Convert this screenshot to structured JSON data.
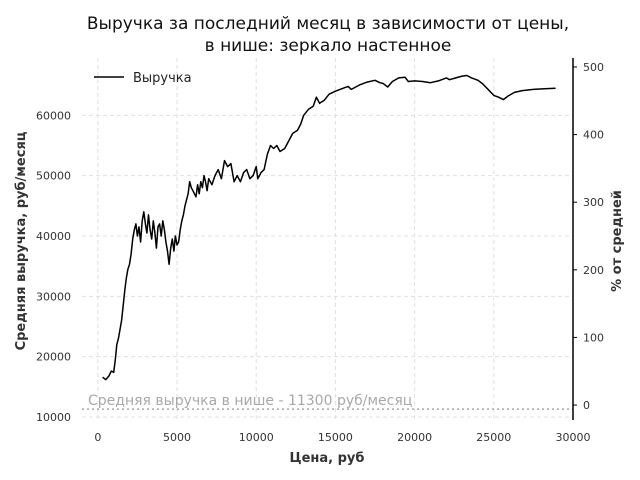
{
  "chart_data": {
    "type": "line",
    "title": "Выручка за последний месяц в зависимости от цены,",
    "subtitle": "в нише: зеркало настенное",
    "xlabel": "Цена, руб",
    "ylabel": "Средняя выручка, руб/месяц",
    "y2label": "% от средней",
    "xlim": [
      -1000,
      30000
    ],
    "ylim": [
      9500,
      69500
    ],
    "y2lim": [
      -22.12,
      513.27
    ],
    "x_ticks": [
      0,
      5000,
      10000,
      15000,
      20000,
      25000,
      30000
    ],
    "y_ticks": [
      10000,
      20000,
      30000,
      40000,
      50000,
      60000
    ],
    "y2_ticks": [
      0,
      100,
      200,
      300,
      400,
      500
    ],
    "grid": true,
    "legend": {
      "position": "top-left",
      "entries": [
        "Выручка"
      ]
    },
    "series": [
      {
        "name": "Выручка",
        "color": "#000000",
        "points": [
          [
            300,
            16600
          ],
          [
            500,
            16200
          ],
          [
            700,
            16800
          ],
          [
            850,
            17600
          ],
          [
            1000,
            17400
          ],
          [
            1100,
            19500
          ],
          [
            1200,
            22000
          ],
          [
            1300,
            23000
          ],
          [
            1400,
            24500
          ],
          [
            1500,
            26000
          ],
          [
            1600,
            28500
          ],
          [
            1700,
            31000
          ],
          [
            1800,
            33000
          ],
          [
            1900,
            34500
          ],
          [
            2000,
            35300
          ],
          [
            2100,
            37000
          ],
          [
            2200,
            39500
          ],
          [
            2300,
            41000
          ],
          [
            2400,
            42000
          ],
          [
            2500,
            40000
          ],
          [
            2600,
            41500
          ],
          [
            2700,
            39000
          ],
          [
            2800,
            42500
          ],
          [
            2900,
            44000
          ],
          [
            3000,
            42000
          ],
          [
            3100,
            40500
          ],
          [
            3200,
            43500
          ],
          [
            3300,
            41000
          ],
          [
            3400,
            39500
          ],
          [
            3500,
            42500
          ],
          [
            3600,
            40500
          ],
          [
            3700,
            38000
          ],
          [
            3800,
            41500
          ],
          [
            3900,
            42000
          ],
          [
            4000,
            40000
          ],
          [
            4100,
            42500
          ],
          [
            4200,
            41000
          ],
          [
            4300,
            39000
          ],
          [
            4400,
            37500
          ],
          [
            4500,
            35300
          ],
          [
            4600,
            38000
          ],
          [
            4700,
            39500
          ],
          [
            4800,
            37500
          ],
          [
            4900,
            40000
          ],
          [
            5000,
            38500
          ],
          [
            5100,
            39000
          ],
          [
            5200,
            41000
          ],
          [
            5300,
            42500
          ],
          [
            5400,
            43500
          ],
          [
            5500,
            45000
          ],
          [
            5700,
            47000
          ],
          [
            5800,
            49000
          ],
          [
            5900,
            48000
          ],
          [
            6000,
            47500
          ],
          [
            6200,
            46500
          ],
          [
            6300,
            48500
          ],
          [
            6400,
            47000
          ],
          [
            6500,
            49000
          ],
          [
            6600,
            48000
          ],
          [
            6700,
            50000
          ],
          [
            6800,
            49000
          ],
          [
            6900,
            47500
          ],
          [
            7000,
            49500
          ],
          [
            7200,
            48500
          ],
          [
            7400,
            50000
          ],
          [
            7600,
            51000
          ],
          [
            7800,
            49500
          ],
          [
            8000,
            52500
          ],
          [
            8200,
            51500
          ],
          [
            8400,
            52000
          ],
          [
            8600,
            49000
          ],
          [
            8800,
            50000
          ],
          [
            9000,
            49000
          ],
          [
            9200,
            50500
          ],
          [
            9400,
            51000
          ],
          [
            9600,
            49500
          ],
          [
            9800,
            50000
          ],
          [
            10000,
            51500
          ],
          [
            10100,
            49500
          ],
          [
            10300,
            50500
          ],
          [
            10500,
            51000
          ],
          [
            10700,
            53500
          ],
          [
            10900,
            55000
          ],
          [
            11100,
            54500
          ],
          [
            11300,
            55000
          ],
          [
            11500,
            54000
          ],
          [
            11800,
            54500
          ],
          [
            12000,
            55500
          ],
          [
            12300,
            57000
          ],
          [
            12600,
            57500
          ],
          [
            12800,
            58500
          ],
          [
            13000,
            60000
          ],
          [
            13300,
            61000
          ],
          [
            13600,
            61500
          ],
          [
            13800,
            63000
          ],
          [
            14000,
            62000
          ],
          [
            14300,
            62500
          ],
          [
            14600,
            63500
          ],
          [
            15000,
            64000
          ],
          [
            15500,
            64500
          ],
          [
            15800,
            64800
          ],
          [
            16000,
            64300
          ],
          [
            16500,
            65000
          ],
          [
            17000,
            65500
          ],
          [
            17500,
            65800
          ],
          [
            17800,
            65400
          ],
          [
            18000,
            65300
          ],
          [
            18300,
            64700
          ],
          [
            18600,
            65600
          ],
          [
            19000,
            66200
          ],
          [
            19400,
            66300
          ],
          [
            19600,
            65600
          ],
          [
            20000,
            65700
          ],
          [
            20500,
            65600
          ],
          [
            21000,
            65400
          ],
          [
            21500,
            65700
          ],
          [
            22000,
            66200
          ],
          [
            22200,
            65900
          ],
          [
            22600,
            66200
          ],
          [
            23000,
            66500
          ],
          [
            23300,
            66600
          ],
          [
            23600,
            66200
          ],
          [
            24000,
            65800
          ],
          [
            24300,
            65200
          ],
          [
            24600,
            64400
          ],
          [
            25000,
            63300
          ],
          [
            25300,
            63000
          ],
          [
            25600,
            62600
          ],
          [
            25900,
            63200
          ],
          [
            26300,
            63800
          ],
          [
            26800,
            64100
          ],
          [
            27500,
            64300
          ],
          [
            28200,
            64400
          ],
          [
            28900,
            64500
          ]
        ]
      }
    ],
    "reference_line": {
      "value": 11300,
      "label": "Средняя выручка в нише - 11300 руб/месяц",
      "color": "#a8a8a8",
      "style": "dotted"
    }
  }
}
